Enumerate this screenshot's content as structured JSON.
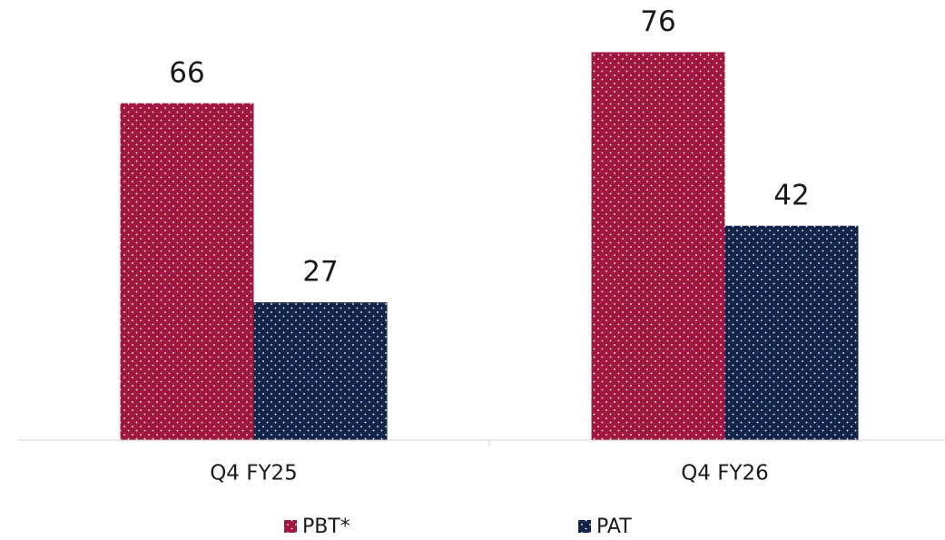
{
  "chart_data": {
    "type": "bar",
    "categories": [
      "Q4 FY25",
      "Q4 FY26"
    ],
    "series": [
      {
        "name": "PBT*",
        "color": "#a0173f",
        "values": [
          66,
          76
        ]
      },
      {
        "name": "PAT",
        "color": "#13254a",
        "values": [
          27,
          42
        ]
      }
    ],
    "ylim": [
      0,
      80
    ]
  }
}
